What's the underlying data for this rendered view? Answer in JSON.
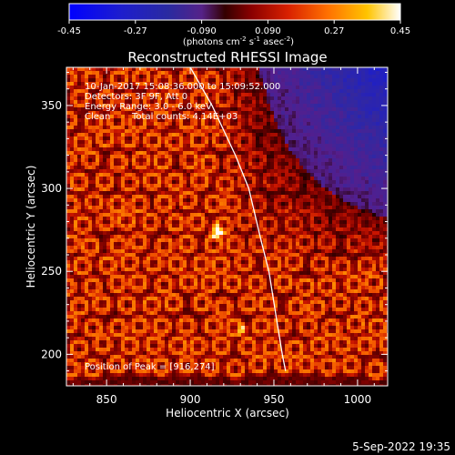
{
  "colorbar": {
    "tick_labels": [
      "-0.45",
      "-0.27",
      "-0.090",
      "0.090",
      "0.27",
      "0.45"
    ],
    "tick_values": [
      -0.45,
      -0.27,
      -0.09,
      0.09,
      0.27,
      0.45
    ],
    "range": [
      -0.45,
      0.45
    ],
    "units_main": "(photons cm",
    "units_sup1": "-2",
    "units_mid": " s",
    "units_sup2": "-1",
    "units_end": " asec",
    "units_sup3": "-2",
    "units_close": ")"
  },
  "chart_data": {
    "type": "heatmap",
    "title": "Reconstructed RHESSI Image",
    "xlabel": "Heliocentric X (arcsec)",
    "ylabel": "Heliocentric Y (arcsec)",
    "xlim": [
      826,
      1018
    ],
    "ylim": [
      181,
      373
    ],
    "x_ticks": [
      850,
      900,
      950,
      1000
    ],
    "x_tick_labels": [
      "850",
      "900",
      "950",
      "1000"
    ],
    "y_ticks": [
      200,
      250,
      300,
      350
    ],
    "y_tick_labels": [
      "200",
      "250",
      "300",
      "350"
    ],
    "peak_x": 916,
    "peak_y": 274,
    "limb_curve": [
      [
        900,
        373
      ],
      [
        913,
        350
      ],
      [
        927,
        320
      ],
      [
        935,
        300
      ],
      [
        942,
        270
      ],
      [
        947,
        250
      ],
      [
        951,
        225
      ],
      [
        955,
        200
      ],
      [
        957,
        190
      ]
    ]
  },
  "info": {
    "line1": "10-Jan-2017 15:08:36.000 to 15:09:52.000",
    "line2": "Detectors: 3F 9F, Att 0",
    "line3": "Energy Range: 3.0 - 6.0 keV",
    "line4_a": "Clean",
    "line4_b": "Total counts: 4.14E+03",
    "peak_text": "Position of Peak = [916,274]"
  },
  "footer_date": "5-Sep-2022 19:35"
}
